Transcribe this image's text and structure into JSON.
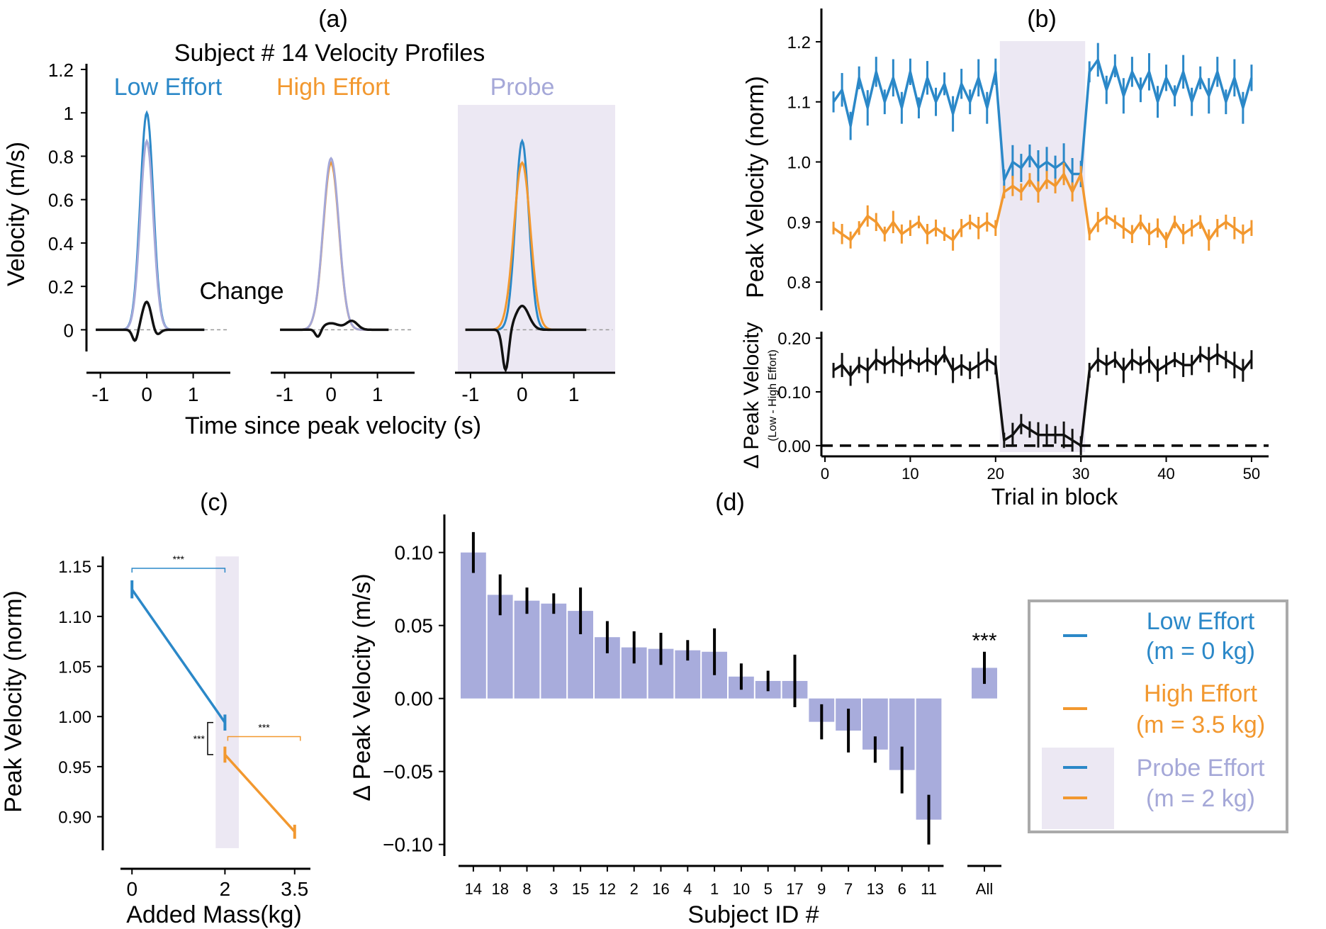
{
  "colors": {
    "low": "#2b88c8",
    "high": "#f2982f",
    "probe": "#a5a8d8",
    "black": "#111111",
    "probe_bg": "#ece8f3",
    "bar": "#a8acdc",
    "legend_border": "#aaaaaa"
  },
  "panels": {
    "a": "(a)",
    "b": "(b)",
    "c": "(c)",
    "d": "(d)"
  },
  "chart_data": [
    {
      "id": "a",
      "type": "line",
      "title": "Subject # 14 Velocity Profiles",
      "xlabel": "Time since peak velocity (s)",
      "ylabel": "Velocity (m/s)",
      "ylim": [
        -0.1,
        1.2
      ],
      "yticks": [
        0,
        0.2,
        0.4,
        0.6,
        0.8,
        1,
        1.2
      ],
      "ytick_labels": [
        "0",
        "0.2",
        "0.4",
        "0.6",
        "0.8",
        "1",
        "1.2"
      ],
      "xticks": [
        -1,
        0,
        1
      ],
      "xtick_labels": [
        "-1",
        "0",
        "1"
      ],
      "labels": {
        "low": "Low Effort",
        "high": "High Effort",
        "probe": "Probe",
        "change": "Change"
      },
      "subplots": [
        {
          "name": "Low Effort",
          "shaded": false,
          "xlim": [
            -1.3,
            1.8
          ],
          "line_x_end": 1.25,
          "curves": [
            {
              "series": "low",
              "peak": 1.0,
              "width": 0.14
            },
            {
              "series": "probe",
              "peak": 0.87,
              "width": 0.14
            },
            {
              "series": "black",
              "peak": 0.13,
              "width": 0.1,
              "dip": -0.055,
              "dip_at": -0.25,
              "dip2": -0.03,
              "dip2_at": 0.2
            }
          ]
        },
        {
          "name": "High Effort",
          "shaded": false,
          "xlim": [
            -1.3,
            1.8
          ],
          "line_x_end": 1.25,
          "curves": [
            {
              "series": "high",
              "peak": 0.77,
              "width": 0.17
            },
            {
              "series": "probe",
              "peak": 0.79,
              "width": 0.17
            },
            {
              "series": "black",
              "peak": 0.03,
              "width": 0.18,
              "dip": -0.04,
              "dip_at": -0.28,
              "hump": 0.04,
              "hump_at": 0.45
            }
          ]
        },
        {
          "name": "Probe",
          "shaded": true,
          "xlim": [
            -1.3,
            1.8
          ],
          "line_x_end": 1.25,
          "curves": [
            {
              "series": "low",
              "peak": 0.87,
              "width": 0.13
            },
            {
              "series": "high",
              "peak": 0.77,
              "width": 0.16
            },
            {
              "series": "black",
              "peak": 0.11,
              "width": 0.13,
              "dip": -0.19,
              "dip_at": -0.32
            }
          ]
        }
      ]
    },
    {
      "id": "b",
      "type": "line",
      "ylabel": "Peak Velocity (norm)",
      "ylabel2_main": "Δ Peak Velocity",
      "ylabel2_sub": "(Low - High Effort)",
      "xlabel": "Trial in block",
      "xlim": [
        -1,
        52
      ],
      "xticks": [
        0,
        10,
        20,
        30,
        40,
        50
      ],
      "top_ylim": [
        0.76,
        1.22
      ],
      "top_yticks": [
        0.8,
        0.9,
        1.0,
        1.1,
        1.2
      ],
      "top_ytick_labels": [
        "0.8",
        "0.9",
        "1.0",
        "1.1",
        "1.2"
      ],
      "bottom_ylim": [
        -0.02,
        0.22
      ],
      "bottom_yticks": [
        0.0,
        0.1,
        0.2
      ],
      "bottom_ytick_labels": [
        "0.00",
        "0.10",
        "0.20"
      ],
      "probe_range": [
        20.5,
        30.5
      ],
      "trials": [
        1,
        2,
        3,
        4,
        5,
        6,
        7,
        8,
        9,
        10,
        11,
        12,
        13,
        14,
        15,
        16,
        17,
        18,
        19,
        20,
        21,
        22,
        23,
        24,
        25,
        26,
        27,
        28,
        29,
        30,
        31,
        32,
        33,
        34,
        35,
        36,
        37,
        38,
        39,
        40,
        41,
        42,
        43,
        44,
        45,
        46,
        47,
        48,
        49,
        50
      ],
      "series": [
        {
          "name": "Low Effort",
          "color": "low",
          "panel": "top",
          "values": [
            1.1,
            1.12,
            1.06,
            1.14,
            1.09,
            1.15,
            1.1,
            1.14,
            1.09,
            1.15,
            1.09,
            1.14,
            1.1,
            1.13,
            1.08,
            1.13,
            1.1,
            1.14,
            1.09,
            1.15,
            0.97,
            1.0,
            0.99,
            1.01,
            0.99,
            1.0,
            0.99,
            1.0,
            0.98,
            0.98,
            1.15,
            1.17,
            1.12,
            1.16,
            1.11,
            1.15,
            1.12,
            1.15,
            1.1,
            1.14,
            1.11,
            1.15,
            1.1,
            1.14,
            1.11,
            1.15,
            1.1,
            1.14,
            1.09,
            1.14
          ],
          "err": 0.025
        },
        {
          "name": "High Effort",
          "color": "high",
          "panel": "top",
          "values": [
            0.89,
            0.88,
            0.87,
            0.89,
            0.91,
            0.9,
            0.88,
            0.9,
            0.88,
            0.89,
            0.9,
            0.88,
            0.89,
            0.88,
            0.87,
            0.89,
            0.9,
            0.89,
            0.9,
            0.89,
            0.95,
            0.96,
            0.95,
            0.97,
            0.95,
            0.97,
            0.96,
            0.98,
            0.95,
            0.98,
            0.88,
            0.9,
            0.91,
            0.9,
            0.89,
            0.88,
            0.9,
            0.88,
            0.89,
            0.87,
            0.9,
            0.88,
            0.89,
            0.9,
            0.87,
            0.89,
            0.9,
            0.89,
            0.88,
            0.89
          ],
          "err": 0.015
        },
        {
          "name": "Δ Peak Velocity",
          "color": "black",
          "panel": "bottom",
          "values": [
            0.14,
            0.15,
            0.13,
            0.15,
            0.14,
            0.16,
            0.15,
            0.16,
            0.15,
            0.16,
            0.15,
            0.16,
            0.15,
            0.17,
            0.14,
            0.15,
            0.14,
            0.15,
            0.16,
            0.15,
            0.01,
            0.02,
            0.04,
            0.03,
            0.02,
            0.02,
            0.02,
            0.02,
            0.01,
            0.0,
            0.14,
            0.16,
            0.15,
            0.16,
            0.14,
            0.16,
            0.15,
            0.16,
            0.14,
            0.15,
            0.16,
            0.15,
            0.15,
            0.17,
            0.16,
            0.17,
            0.16,
            0.15,
            0.14,
            0.16
          ],
          "err": 0.02
        }
      ]
    },
    {
      "id": "c",
      "type": "line",
      "xlabel": "Added Mass(kg)",
      "ylabel": "Peak Velocity (norm)",
      "xlim": [
        -0.4,
        3.9
      ],
      "ylim": [
        0.865,
        1.165
      ],
      "xticks": [
        0,
        2,
        3.5
      ],
      "xtick_labels": [
        "0",
        "2",
        "3.5"
      ],
      "yticks": [
        0.9,
        0.95,
        1.0,
        1.05,
        1.1,
        1.15
      ],
      "ytick_labels": [
        "0.90",
        "0.95",
        "1.00",
        "1.05",
        "1.10",
        "1.15"
      ],
      "probe_band": [
        1.8,
        2.3
      ],
      "series": [
        {
          "name": "Low Effort",
          "color": "low",
          "x": [
            0,
            2
          ],
          "values": [
            1.127,
            0.994
          ],
          "err": [
            0.009,
            0.008
          ]
        },
        {
          "name": "High Effort",
          "color": "high",
          "x": [
            2,
            3.5
          ],
          "values": [
            0.962,
            0.885
          ],
          "err": [
            0.008,
            0.007
          ]
        }
      ],
      "significance": [
        {
          "label": "***",
          "kind": "top",
          "x1": 0,
          "x2": 2,
          "y": 1.148,
          "color": "low"
        },
        {
          "label": "***",
          "kind": "right",
          "x1": 2,
          "x2": 3.5,
          "y": 0.98,
          "color": "high"
        },
        {
          "label": "***",
          "kind": "side",
          "x": 1.75,
          "y1": 0.994,
          "y2": 0.962,
          "color": "black"
        }
      ]
    },
    {
      "id": "d",
      "type": "bar",
      "xlabel": "Subject ID #",
      "ylabel": "Δ Peak Velocity (m/s)",
      "ylim": [
        -0.105,
        0.128
      ],
      "yticks": [
        -0.1,
        -0.05,
        0.0,
        0.05,
        0.1
      ],
      "ytick_labels": [
        "−0.10",
        "−0.05",
        "0.00",
        "0.05",
        "0.10"
      ],
      "categories": [
        "14",
        "18",
        "8",
        "3",
        "15",
        "12",
        "2",
        "16",
        "4",
        "1",
        "10",
        "5",
        "17",
        "9",
        "7",
        "13",
        "6",
        "11"
      ],
      "values": [
        0.1,
        0.071,
        0.067,
        0.065,
        0.06,
        0.042,
        0.035,
        0.034,
        0.033,
        0.032,
        0.015,
        0.012,
        0.012,
        -0.016,
        -0.022,
        -0.035,
        -0.049,
        -0.083
      ],
      "err": [
        0.014,
        0.014,
        0.009,
        0.007,
        0.016,
        0.011,
        0.011,
        0.011,
        0.007,
        0.016,
        0.009,
        0.007,
        0.018,
        0.012,
        0.015,
        0.009,
        0.016,
        0.017
      ],
      "all": {
        "label": "All",
        "value": 0.021,
        "err": 0.011,
        "significance": "***"
      }
    }
  ],
  "legend": {
    "items": [
      {
        "label": "Low Effort",
        "sub": "(m = 0 kg)",
        "color": "low",
        "marker_color": "low",
        "shaded": false
      },
      {
        "label": "High Effort",
        "sub": "(m = 3.5 kg)",
        "color": "high",
        "marker_color": "high",
        "shaded": false
      },
      {
        "label": "Probe Effort",
        "sub": "(m = 2 kg)",
        "color": "probe",
        "marker_color": "low",
        "marker_color2": "high",
        "shaded": true
      }
    ]
  }
}
